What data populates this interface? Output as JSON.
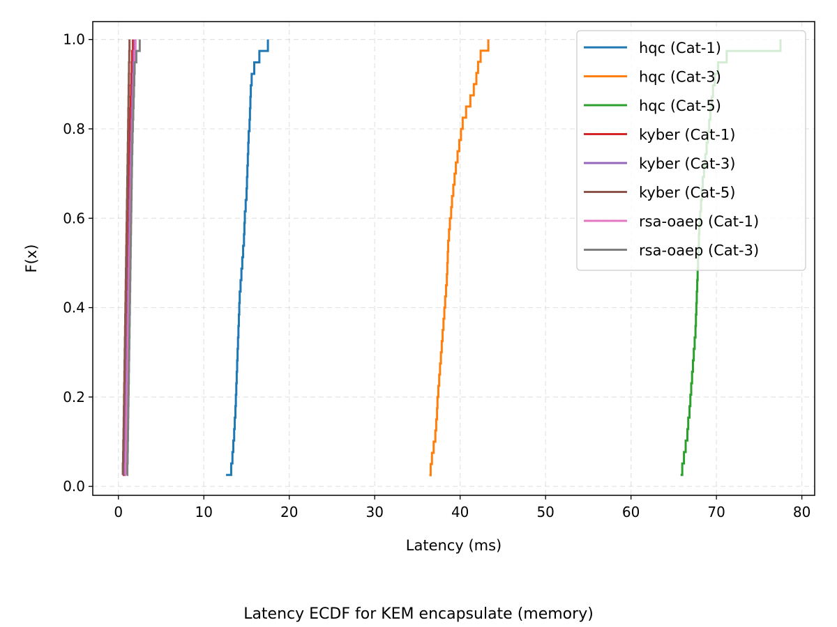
{
  "chart_data": {
    "type": "line",
    "subtype": "ecdf-step",
    "xlabel": "Latency (ms)",
    "ylabel": "F(x)",
    "caption": "Latency ECDF for KEM encapsulate (memory)",
    "xlim": [
      -3,
      81.5
    ],
    "ylim": [
      -0.02,
      1.04
    ],
    "xticks": [
      0,
      10,
      20,
      30,
      40,
      50,
      60,
      70,
      80
    ],
    "yticks": [
      0.0,
      0.2,
      0.4,
      0.6,
      0.8,
      1.0
    ],
    "xtick_labels": [
      "0",
      "10",
      "20",
      "30",
      "40",
      "50",
      "60",
      "70",
      "80"
    ],
    "ytick_labels": [
      "0.0",
      "0.2",
      "0.4",
      "0.6",
      "0.8",
      "1.0"
    ],
    "grid": true,
    "legend_position": "top-right",
    "series": [
      {
        "name": "hqc (Cat-1)",
        "color": "#1f77b4",
        "x": [
          12.6,
          13.2,
          13.35,
          13.45,
          13.55,
          13.62,
          13.7,
          13.75,
          13.8,
          13.85,
          13.9,
          13.95,
          14.0,
          14.05,
          14.1,
          14.15,
          14.2,
          14.3,
          14.4,
          14.5,
          14.6,
          14.7,
          14.75,
          14.8,
          14.9,
          15.0,
          15.05,
          15.1,
          15.15,
          15.2,
          15.25,
          15.35,
          15.4,
          15.45,
          15.5,
          15.6,
          15.9,
          16.5,
          17.5
        ]
      },
      {
        "name": "hqc (Cat-3)",
        "color": "#ff7f0e",
        "x": [
          36.4,
          36.55,
          36.7,
          36.9,
          37.1,
          37.2,
          37.3,
          37.35,
          37.45,
          37.55,
          37.65,
          37.75,
          37.85,
          37.95,
          38.05,
          38.15,
          38.25,
          38.35,
          38.45,
          38.5,
          38.55,
          38.6,
          38.7,
          38.8,
          38.95,
          39.05,
          39.2,
          39.35,
          39.5,
          39.7,
          39.9,
          40.1,
          40.3,
          40.7,
          41.2,
          41.6,
          41.9,
          42.1,
          42.4,
          43.3
        ]
      },
      {
        "name": "hqc (Cat-5)",
        "color": "#2ca02c",
        "x": [
          65.8,
          66.0,
          66.2,
          66.4,
          66.6,
          66.7,
          66.85,
          66.95,
          67.05,
          67.15,
          67.25,
          67.35,
          67.45,
          67.55,
          67.6,
          67.65,
          67.7,
          67.75,
          67.8,
          67.85,
          67.9,
          67.95,
          68.0,
          68.1,
          68.2,
          68.3,
          68.4,
          68.55,
          68.7,
          68.85,
          69.0,
          69.15,
          69.3,
          69.45,
          69.6,
          69.8,
          70.2,
          71.2,
          77.5
        ]
      },
      {
        "name": "kyber (Cat-1)",
        "color": "#d62728",
        "x": [
          0.55,
          0.6,
          0.62,
          0.65,
          0.68,
          0.7,
          0.72,
          0.75,
          0.78,
          0.8,
          0.82,
          0.85,
          0.88,
          0.9,
          0.92,
          0.95,
          0.98,
          1.0,
          1.02,
          1.05,
          1.08,
          1.1,
          1.12,
          1.15,
          1.18,
          1.2,
          1.22,
          1.25,
          1.28,
          1.3,
          1.33,
          1.36,
          1.4,
          1.44,
          1.48,
          1.52,
          1.56,
          1.6,
          1.7
        ]
      },
      {
        "name": "kyber (Cat-3)",
        "color": "#9467bd",
        "x": [
          0.7,
          0.75,
          0.78,
          0.8,
          0.82,
          0.85,
          0.87,
          0.9,
          0.92,
          0.95,
          0.97,
          1.0,
          1.02,
          1.05,
          1.07,
          1.1,
          1.12,
          1.15,
          1.17,
          1.2,
          1.22,
          1.25,
          1.27,
          1.3,
          1.32,
          1.35,
          1.38,
          1.41,
          1.44,
          1.47,
          1.5,
          1.54,
          1.58,
          1.62,
          1.66,
          1.7,
          1.75,
          1.8,
          1.9
        ]
      },
      {
        "name": "kyber (Cat-5)",
        "color": "#8c564b",
        "x": [
          0.5,
          0.52,
          0.55,
          0.57,
          0.6,
          0.62,
          0.64,
          0.66,
          0.68,
          0.7,
          0.72,
          0.74,
          0.76,
          0.78,
          0.8,
          0.82,
          0.84,
          0.86,
          0.88,
          0.9,
          0.92,
          0.94,
          0.96,
          0.98,
          1.0,
          1.02,
          1.04,
          1.06,
          1.08,
          1.1,
          1.12,
          1.14,
          1.16,
          1.18,
          1.2,
          1.22,
          1.24,
          1.27,
          1.3
        ]
      },
      {
        "name": "rsa-oaep (Cat-1)",
        "color": "#e377c2",
        "x": [
          0.8,
          0.85,
          0.88,
          0.9,
          0.93,
          0.95,
          0.98,
          1.0,
          1.02,
          1.05,
          1.07,
          1.1,
          1.12,
          1.15,
          1.17,
          1.2,
          1.22,
          1.25,
          1.27,
          1.3,
          1.32,
          1.35,
          1.37,
          1.4,
          1.42,
          1.45,
          1.48,
          1.5,
          1.53,
          1.56,
          1.6,
          1.64,
          1.68,
          1.72,
          1.76,
          1.8,
          1.85,
          1.9,
          2.0
        ]
      },
      {
        "name": "rsa-oaep (Cat-3)",
        "color": "#7f7f7f",
        "x": [
          1.0,
          1.05,
          1.08,
          1.1,
          1.12,
          1.14,
          1.16,
          1.18,
          1.2,
          1.22,
          1.24,
          1.26,
          1.28,
          1.3,
          1.32,
          1.34,
          1.36,
          1.38,
          1.4,
          1.42,
          1.44,
          1.46,
          1.48,
          1.5,
          1.52,
          1.54,
          1.56,
          1.58,
          1.6,
          1.63,
          1.66,
          1.7,
          1.74,
          1.78,
          1.82,
          1.86,
          1.9,
          2.1,
          2.5
        ]
      }
    ]
  }
}
